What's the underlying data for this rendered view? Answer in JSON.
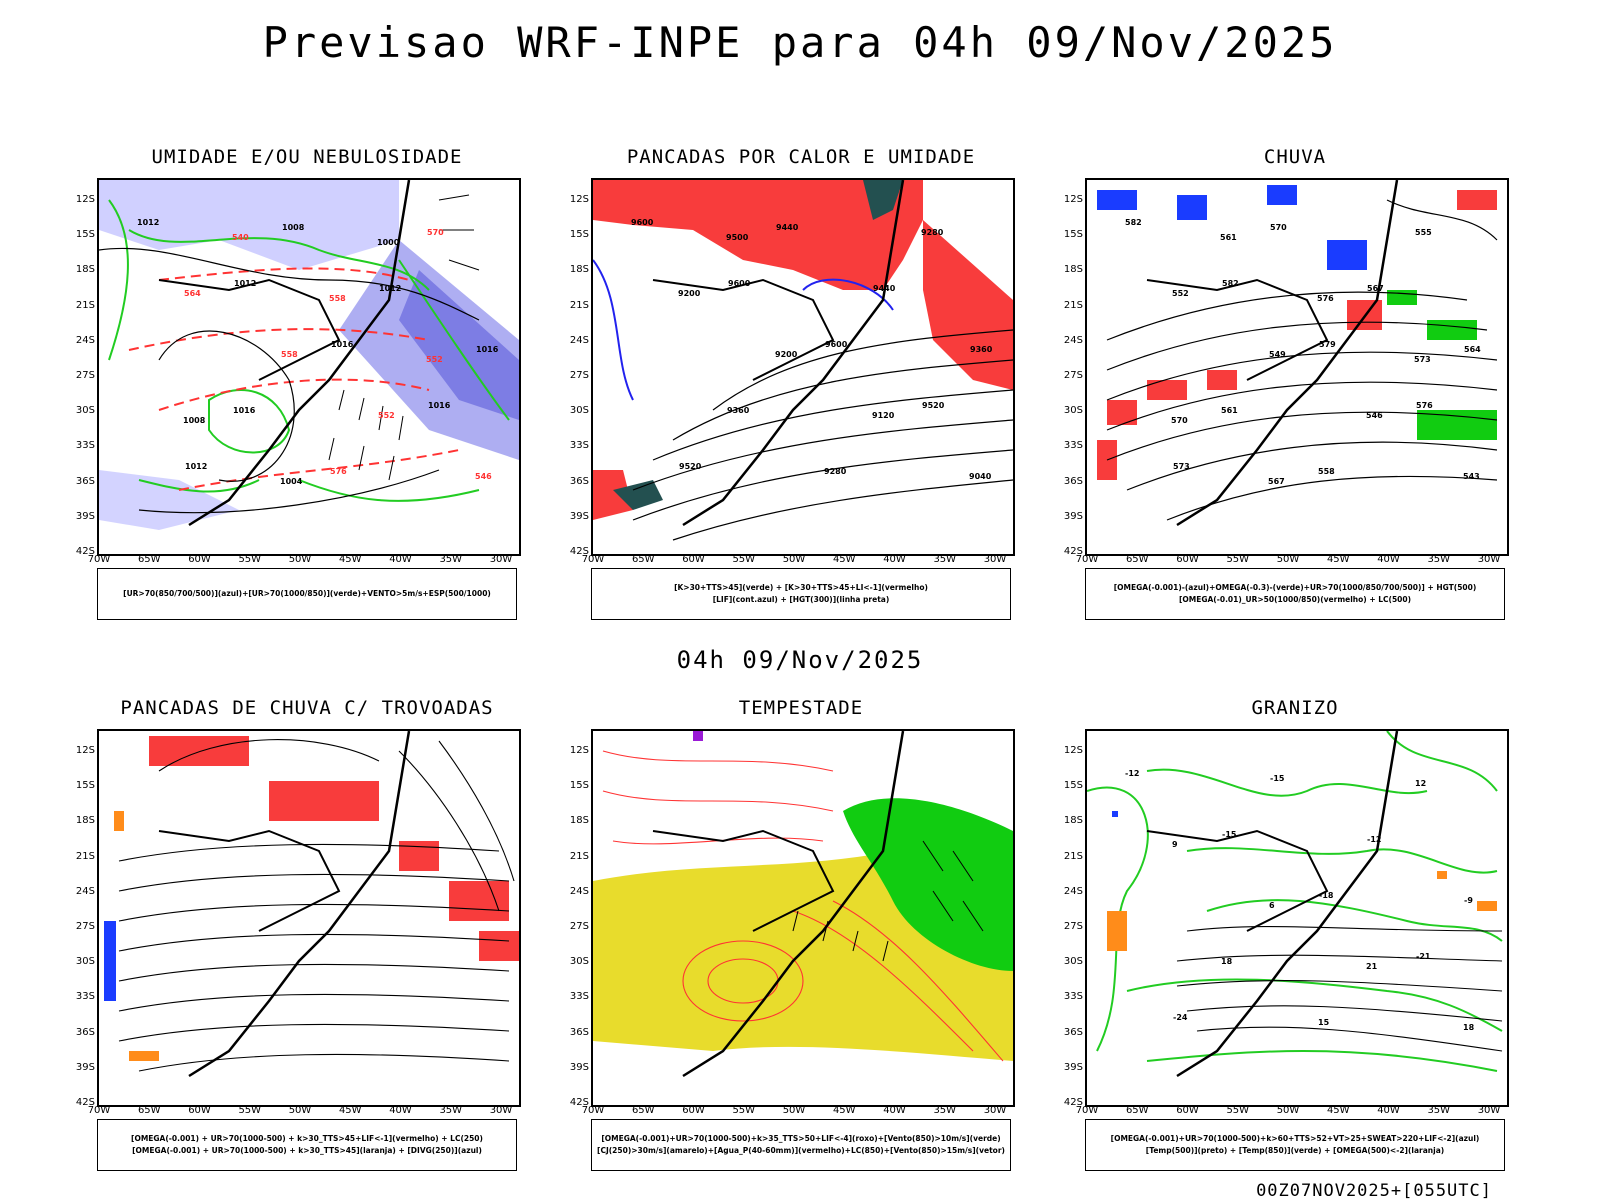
{
  "title": "Previsao WRF-INPE  para 04h 09/Nov/2025",
  "mid_title": "04h 09/Nov/2025",
  "footer": "00Z07NOV2025+[055UTC]",
  "axes": {
    "lat_labels": [
      "12S",
      "15S",
      "18S",
      "21S",
      "24S",
      "27S",
      "30S",
      "33S",
      "36S",
      "39S",
      "42S"
    ],
    "lon_labels": [
      "70W",
      "65W",
      "60W",
      "55W",
      "50W",
      "45W",
      "40W",
      "35W",
      "30W"
    ]
  },
  "panels": [
    {
      "title": "UMIDADE E/OU NEBULOSIDADE",
      "legend": [
        "[UR>70(850/700/500)](azul)+[UR>70(1000/850)](verde)+VENTO>5m/s+ESP(500/1000)"
      ],
      "labels": [
        "1012",
        "1012",
        "1016",
        "1016",
        "1012",
        "1008",
        "1012",
        "1016",
        "1016",
        "576",
        "570",
        "564",
        "558",
        "552",
        "546",
        "540",
        "558",
        "552",
        "1008",
        "1004",
        "1000"
      ]
    },
    {
      "title": "PANCADAS POR CALOR E UMIDADE",
      "legend": [
        "[K>30+TTS>45](verde)  +  [K>30+TTS>45+LI<-1](vermelho)",
        "[LIF](cont.azul)  +  [HGT(300)](linha preta)"
      ],
      "labels": [
        "9600",
        "9600",
        "9600",
        "9520",
        "9520",
        "9440",
        "9440",
        "9360",
        "9360",
        "9280",
        "9280",
        "9200",
        "9200",
        "9120",
        "9040",
        "9500"
      ]
    },
    {
      "title": "CHUVA",
      "legend": [
        "[OMEGA(-0.001)-(azul)+OMEGA(-0.3)-(verde)+UR>70(1000/850/700/500)]  +  HGT(500)",
        "[OMEGA(-0.01)_UR>50(1000/850)(vermelho)  +  LC(500)"
      ],
      "labels": [
        "582",
        "582",
        "579",
        "576",
        "573",
        "570",
        "567",
        "564",
        "561",
        "558",
        "555",
        "552",
        "549",
        "546",
        "543",
        "561",
        "576",
        "573",
        "570",
        "567"
      ]
    },
    {
      "title": "PANCADAS DE CHUVA C/ TROVOADAS",
      "legend": [
        "[OMEGA(-0.001)  +  UR>70(1000-500)  +  k>30_TTS>45+LIF<-1](vermelho)  +  LC(250)",
        "[OMEGA(-0.001)  +  UR>70(1000-500)  +  k>30_TTS>45](laranja)  +  [DIVG(250)](azul)"
      ],
      "labels": []
    },
    {
      "title": "TEMPESTADE",
      "legend": [
        "[OMEGA(-0.001)+UR>70(1000-500)+k>35_TTS>50+LIF<-4](roxo)+[Vento(850)>10m/s](verde)",
        "[CJ(250)>30m/s](amarelo)+[Agua_P(40-60mm)](vermelho)+LC(850)+[Vento(850)>15m/s](vetor)"
      ],
      "labels": []
    },
    {
      "title": "GRANIZO",
      "legend": [
        "[OMEGA(-0.001)+UR>70(1000-500)+k>60+TTS>52+VT>25+SWEAT>220+LIF<-2](azul)",
        "[Temp(500)](preto)  +  [Temp(850)](verde)  +  [OMEGA(500)<-2](laranja)"
      ],
      "labels": [
        "-12",
        "-15",
        "-18",
        "-21",
        "-24",
        "-15",
        "-12",
        "-9",
        "18",
        "15",
        "12",
        "9",
        "6",
        "21",
        "18"
      ]
    }
  ],
  "colors": {
    "humidity_blue": "#b4b4ff",
    "humidity_purple": "#8c8cf0",
    "contour_green": "#22cc22",
    "contour_red": "#ff3333",
    "fill_red": "#f83c3c",
    "dark_teal": "#235050",
    "fill_yellow": "#e8dc2c",
    "fill_green": "#11cc11",
    "orange": "#ff8c1a",
    "blue": "#1a3cff",
    "purple": "#9a1ad6"
  }
}
